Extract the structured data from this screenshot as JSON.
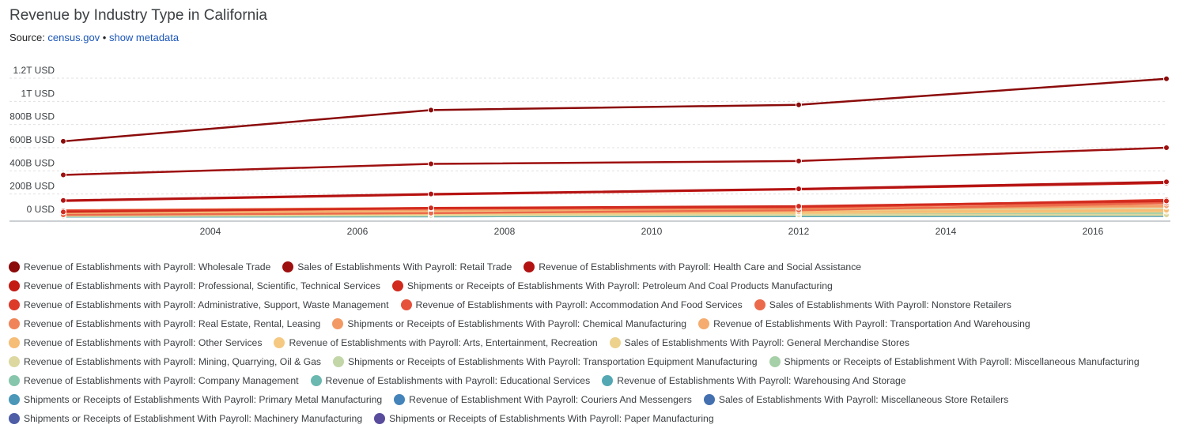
{
  "header": {
    "title": "Revenue by Industry Type in California",
    "source_prefix": "Source: ",
    "source_link": "census.gov",
    "separator": " • ",
    "metadata_link": "show metadata"
  },
  "chart_data": {
    "type": "line",
    "title": "Revenue by Industry Type in California",
    "xlabel": "",
    "ylabel": "",
    "x": [
      2002,
      2007,
      2012,
      2017
    ],
    "xlim": [
      2002,
      2017
    ],
    "ylim": [
      0,
      1200
    ],
    "unit": "billion USD",
    "x_ticks": [
      "2004",
      "2006",
      "2008",
      "2010",
      "2012",
      "2014",
      "2016"
    ],
    "y_ticks": [
      {
        "value": 0,
        "label": "0 USD"
      },
      {
        "value": 200,
        "label": "200B USD"
      },
      {
        "value": 400,
        "label": "400B USD"
      },
      {
        "value": 600,
        "label": "600B USD"
      },
      {
        "value": 800,
        "label": "800B USD"
      },
      {
        "value": 1000,
        "label": "1T USD"
      },
      {
        "value": 1200,
        "label": "1.2T USD"
      }
    ],
    "grid": true,
    "legend_position": "bottom",
    "series": [
      {
        "name": "Revenue of Establishments with Payroll: Wholesale Trade",
        "color": "#8b0a0a",
        "values": [
          655,
          925,
          970,
          1195
        ]
      },
      {
        "name": "Sales of Establishments With Payroll: Retail Trade",
        "color": "#9e0f0f",
        "values": [
          365,
          460,
          485,
          600
        ]
      },
      {
        "name": "Revenue of Establishments with Payroll: Health Care and Social Assistance",
        "color": "#b31212",
        "values": [
          145,
          200,
          245,
          305
        ]
      },
      {
        "name": "Revenue of Establishments with Payroll: Professional, Scientific, Technical Services",
        "color": "#c41a14",
        "values": [
          140,
          195,
          240,
          295
        ]
      },
      {
        "name": "Shipments or Receipts of Establishments With Payroll: Petroleum And Coal Products Manufacturing",
        "color": "#d12a1e",
        "values": [
          45,
          80,
          95,
          140
        ]
      },
      {
        "name": "Revenue of Establishments with Payroll: Administrative, Support, Waste Management",
        "color": "#dd3a2a",
        "values": [
          55,
          75,
          85,
          150
        ]
      },
      {
        "name": "Revenue of Establishments with Payroll: Accommodation And Food Services",
        "color": "#e5513a",
        "values": [
          55,
          75,
          85,
          135
        ]
      },
      {
        "name": "Sales of Establishments With Payroll: Nonstore Retailers",
        "color": "#ec6a4c",
        "values": [
          20,
          35,
          60,
          120
        ]
      },
      {
        "name": "Revenue of Establishments with Payroll: Real Estate, Rental, Leasing",
        "color": "#f08458",
        "values": [
          60,
          80,
          85,
          130
        ]
      },
      {
        "name": "Shipments or Receipts of Establishments With Payroll: Chemical Manufacturing",
        "color": "#f39a64",
        "values": [
          50,
          65,
          75,
          100
        ]
      },
      {
        "name": "Revenue of Establishments With Payroll: Transportation And Warehousing",
        "color": "#f5ac6e",
        "values": [
          45,
          60,
          70,
          90
        ]
      },
      {
        "name": "Revenue of Establishments with Payroll: Other Services",
        "color": "#f6bd76",
        "values": [
          30,
          40,
          45,
          60
        ]
      },
      {
        "name": "Revenue of Establishments with Payroll: Arts, Entertainment, Recreation",
        "color": "#f5c982",
        "values": [
          20,
          30,
          35,
          50
        ]
      },
      {
        "name": "Sales of Establishments With Payroll: General Merchandise Stores",
        "color": "#ecd28c",
        "values": [
          40,
          50,
          55,
          65
        ]
      },
      {
        "name": "Revenue of Establishments with Payroll: Mining, Quarrying, Oil & Gas",
        "color": "#dcd8a0",
        "values": [
          10,
          15,
          20,
          20
        ]
      },
      {
        "name": "Shipments or Receipts of Establishments With Payroll: Transportation Equipment Manufacturing",
        "color": "#c3d6a8",
        "values": [
          55,
          55,
          60,
          70
        ]
      },
      {
        "name": "Shipments or Receipts of Establishment With Payroll: Miscellaneous Manufacturing",
        "color": "#a6d0a8",
        "values": [
          25,
          30,
          30,
          35
        ]
      },
      {
        "name": "Revenue of Establishments with Payroll: Company Management",
        "color": "#86c6ac",
        "values": [
          15,
          20,
          25,
          30
        ]
      },
      {
        "name": "Revenue of Establishments with Payroll: Educational Services",
        "color": "#6ab8b0",
        "values": [
          10,
          12,
          15,
          20
        ]
      },
      {
        "name": "Revenue of Establishments With Payroll: Warehousing And Storage",
        "color": "#54a8b4",
        "values": [
          5,
          8,
          10,
          15
        ]
      },
      {
        "name": "Shipments or Receipts of Establishments With Payroll: Primary Metal Manufacturing",
        "color": "#4a97b8",
        "values": [
          8,
          10,
          10,
          10
        ]
      },
      {
        "name": "Revenue of Establishment With Payroll: Couriers And Messengers",
        "color": "#4484ba",
        "values": [
          5,
          8,
          10,
          15
        ]
      },
      {
        "name": "Sales of Establishments With Payroll: Miscellaneous Store Retailers",
        "color": "#4470b0",
        "values": [
          8,
          10,
          10,
          12
        ]
      },
      {
        "name": "Shipments or Receipts of Establishment With Payroll: Machinery Manufacturing",
        "color": "#4e5ea6",
        "values": [
          25,
          30,
          30,
          32
        ]
      },
      {
        "name": "Shipments or Receipts of Establishments With Payroll: Paper Manufacturing",
        "color": "#5a4c9c",
        "values": [
          10,
          12,
          11,
          12
        ]
      }
    ]
  },
  "legend_layout": [
    [
      0,
      1,
      2
    ],
    [
      3,
      4
    ],
    [
      5,
      6,
      7
    ],
    [
      8,
      9,
      10
    ],
    [
      11,
      12,
      13
    ],
    [
      14,
      15,
      16
    ],
    [
      17,
      18,
      19
    ],
    [
      20,
      21,
      22
    ],
    [
      23,
      24
    ]
  ]
}
